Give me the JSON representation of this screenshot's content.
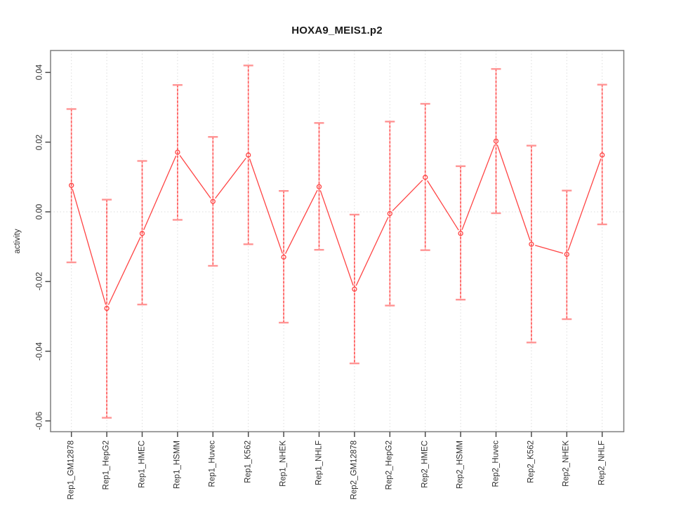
{
  "chart_data": {
    "type": "line",
    "title": "HOXA9_MEIS1.p2",
    "ylabel": "activity",
    "xlabel": "",
    "legend_position": "none",
    "grid": "dotted vertical gridline at each category; dotted horizontal line at y=0",
    "ylim": [
      -0.0631,
      0.0463
    ],
    "y_ticks": [
      0.04,
      0.02,
      0.0,
      -0.02,
      -0.04,
      -0.06
    ],
    "y_tick_labels": [
      "0.04",
      "0.02",
      "0.00",
      "-0.02",
      "-0.04",
      "-0.06"
    ],
    "categories": [
      "Rep1_GM12878",
      "Rep1_HepG2",
      "Rep1_HMEC",
      "Rep1_HSMM",
      "Rep1_Huvec",
      "Rep1_K562",
      "Rep1_NHEK",
      "Rep1_NHLF",
      "Rep2_GM12878",
      "Rep2_HepG2",
      "Rep2_HMEC",
      "Rep2_HSMM",
      "Rep2_Huvec",
      "Rep2_K562",
      "Rep2_NHEK",
      "Rep2_NHLF"
    ],
    "series": [
      {
        "name": "activity",
        "marker": "open-circle",
        "values": [
          0.0076,
          -0.0277,
          -0.0062,
          0.0171,
          0.003,
          0.0163,
          -0.013,
          0.0072,
          -0.0222,
          -0.0005,
          0.0099,
          -0.0062,
          0.0203,
          -0.0093,
          -0.0122,
          0.0163
        ],
        "upper": [
          0.0295,
          0.0035,
          0.0146,
          0.0364,
          0.0215,
          0.042,
          0.006,
          0.0255,
          -0.0008,
          0.0259,
          0.031,
          0.0131,
          0.041,
          0.019,
          0.0061,
          0.0365
        ],
        "lower": [
          -0.0145,
          -0.0591,
          -0.0266,
          -0.0023,
          -0.0155,
          -0.0093,
          -0.0318,
          -0.0109,
          -0.0435,
          -0.0269,
          -0.011,
          -0.0252,
          -0.0004,
          -0.0375,
          -0.0308,
          -0.0036
        ]
      }
    ],
    "colors": {
      "line": "#ff4444",
      "point": "#ff4444",
      "error_bar_base": "#ffb0b0",
      "error_bar_dash": "#ff5252",
      "error_cap": "#ff9494",
      "grid": "#dcdcdc",
      "axis_box": "#7e7e7e",
      "tick": "#4a4a4a",
      "tick_text": "#303030",
      "title_text": "#1a1a1a"
    }
  }
}
